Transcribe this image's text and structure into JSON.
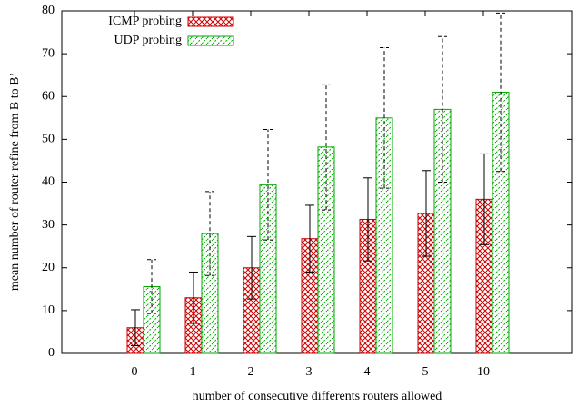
{
  "chart_data": {
    "type": "bar",
    "x_label": "number of consecutive differents routers allowed",
    "y_label": "mean number of router refine from B to B’",
    "categories": [
      "0",
      "1",
      "2",
      "3",
      "4",
      "5",
      "10"
    ],
    "series": [
      {
        "name": "ICMP probing",
        "color": "#cc0000",
        "pattern": "crosshatch",
        "values": [
          6,
          13,
          20,
          26.8,
          31.3,
          32.7,
          36
        ],
        "errors": [
          4.2,
          6,
          7.3,
          7.8,
          9.7,
          10,
          10.6
        ]
      },
      {
        "name": "UDP probing",
        "color": "#00aa00",
        "pattern": "diagonal-dashed",
        "values": [
          15.6,
          28,
          39.4,
          48.2,
          55,
          57,
          61
        ],
        "errors": [
          6.3,
          9.8,
          12.9,
          14.7,
          16.4,
          17,
          18.5
        ]
      }
    ],
    "ylim": [
      0,
      80
    ],
    "yticks": [
      0,
      10,
      20,
      30,
      40,
      50,
      60,
      70,
      80
    ],
    "grid": false,
    "legend": "top-left"
  }
}
